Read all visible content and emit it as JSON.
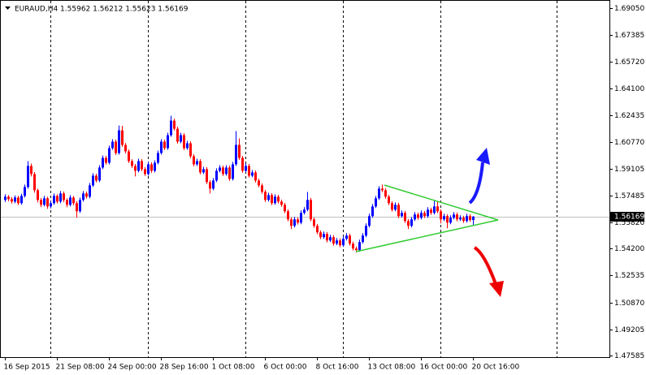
{
  "chart_data": {
    "type": "candlestick",
    "title": "EURAUD,H4  1.55962 1.56212 1.55623 1.56169",
    "up_color": "#0000ff",
    "down_color": "#ff0000",
    "current_price_color": "#c0c0c0",
    "current_price": 1.56169,
    "ylim": [
      1.4749,
      1.6955
    ],
    "yticks": [
      {
        "value": 1.6905,
        "label": "1.69050"
      },
      1.67385,
      {
        "value": 1.6572,
        "label": "1.65720"
      },
      {
        "value": 1.641,
        "label": "1.64100"
      },
      1.62435,
      {
        "value": 1.6077,
        "label": "1.60770"
      },
      1.59105,
      1.57485,
      {
        "value": 1.5582,
        "label": "1.55820"
      },
      {
        "value": 1.542,
        "label": "1.54200"
      },
      1.52535,
      {
        "value": 1.5087,
        "label": "1.50870"
      },
      1.49205,
      1.47585
    ],
    "categories": [
      "16 Sep 2015",
      null,
      null,
      null,
      null,
      null,
      null,
      null,
      null,
      null,
      null,
      null,
      null,
      null,
      null,
      null,
      "21 Sep 08:00",
      null,
      null,
      null,
      null,
      null,
      null,
      null,
      null,
      null,
      null,
      null,
      null,
      null,
      null,
      null,
      "24 Sep 00:00",
      null,
      null,
      null,
      null,
      null,
      null,
      null,
      null,
      null,
      null,
      null,
      null,
      null,
      null,
      null,
      "28 Sep 16:00",
      null,
      null,
      null,
      null,
      null,
      null,
      null,
      null,
      null,
      null,
      null,
      null,
      null,
      null,
      null,
      "1 Oct 08:00",
      null,
      null,
      null,
      null,
      null,
      null,
      null,
      null,
      null,
      null,
      null,
      null,
      null,
      null,
      null,
      "6 Oct 00:00",
      null,
      null,
      null,
      null,
      null,
      null,
      null,
      null,
      null,
      null,
      null,
      null,
      null,
      null,
      null,
      "8 Oct 16:00",
      null,
      null,
      null,
      null,
      null,
      null,
      null,
      null,
      null,
      null,
      null,
      null,
      null,
      null,
      null,
      "13 Oct 08:00",
      null,
      null,
      null,
      null,
      null,
      null,
      null,
      null,
      null,
      null,
      null,
      null,
      null,
      null,
      null,
      "16 Oct 00:00",
      null,
      null,
      null,
      null,
      null,
      null,
      null,
      null,
      null,
      null,
      null,
      null,
      null,
      null,
      null,
      "20 Oct 16:00"
    ],
    "candles": [
      [
        1.572,
        1.5755,
        1.5708,
        1.574
      ],
      [
        1.574,
        1.575,
        1.5712,
        1.5725
      ],
      [
        1.5725,
        1.5738,
        1.5698,
        1.571
      ],
      [
        1.571,
        1.5748,
        1.57,
        1.5735
      ],
      [
        1.5735,
        1.5745,
        1.5688,
        1.57
      ],
      [
        1.57,
        1.5758,
        1.569,
        1.5745
      ],
      [
        1.5745,
        1.5815,
        1.5735,
        1.58
      ],
      [
        1.58,
        1.596,
        1.579,
        1.593
      ],
      [
        1.593,
        1.5945,
        1.5865,
        1.588
      ],
      [
        1.588,
        1.5892,
        1.5765,
        1.578
      ],
      [
        1.578,
        1.579,
        1.5705,
        1.572
      ],
      [
        1.572,
        1.5732,
        1.5676,
        1.569
      ],
      [
        1.569,
        1.5745,
        1.568,
        1.573
      ],
      [
        1.573,
        1.574,
        1.5665,
        1.568
      ],
      [
        1.568,
        1.5715,
        1.5668,
        1.57
      ],
      [
        1.57,
        1.576,
        1.569,
        1.5745
      ],
      [
        1.5745,
        1.5755,
        1.5698,
        1.571
      ],
      [
        1.571,
        1.5775,
        1.57,
        1.576
      ],
      [
        1.576,
        1.5772,
        1.5706,
        1.572
      ],
      [
        1.572,
        1.573,
        1.5675,
        1.569
      ],
      [
        1.569,
        1.575,
        1.568,
        1.5735
      ],
      [
        1.5735,
        1.5745,
        1.5688,
        1.57
      ],
      [
        1.57,
        1.5712,
        1.561,
        1.565
      ],
      [
        1.565,
        1.5735,
        1.564,
        1.572
      ],
      [
        1.572,
        1.5775,
        1.571,
        1.576
      ],
      [
        1.576,
        1.5772,
        1.5728,
        1.574
      ],
      [
        1.574,
        1.5825,
        1.573,
        1.581
      ],
      [
        1.581,
        1.5885,
        1.58,
        1.587
      ],
      [
        1.587,
        1.5882,
        1.5828,
        1.584
      ],
      [
        1.584,
        1.5935,
        1.583,
        1.592
      ],
      [
        1.592,
        1.5995,
        1.591,
        1.598
      ],
      [
        1.598,
        1.5992,
        1.5938,
        1.595
      ],
      [
        1.595,
        1.6055,
        1.594,
        1.604
      ],
      [
        1.604,
        1.6095,
        1.603,
        1.608
      ],
      [
        1.608,
        1.6092,
        1.5998,
        1.601
      ],
      [
        1.601,
        1.618,
        1.6,
        1.615
      ],
      [
        1.615,
        1.6178,
        1.6048,
        1.606
      ],
      [
        1.606,
        1.6072,
        1.6008,
        1.602
      ],
      [
        1.602,
        1.6032,
        1.5948,
        1.596
      ],
      [
        1.596,
        1.5972,
        1.5918,
        1.593
      ],
      [
        1.593,
        1.5942,
        1.5865,
        1.59
      ],
      [
        1.59,
        1.5975,
        1.589,
        1.596
      ],
      [
        1.596,
        1.5972,
        1.5898,
        1.591
      ],
      [
        1.591,
        1.5922,
        1.5868,
        1.588
      ],
      [
        1.588,
        1.5955,
        1.587,
        1.594
      ],
      [
        1.594,
        1.5952,
        1.5888,
        1.59
      ],
      [
        1.59,
        1.5965,
        1.589,
        1.595
      ],
      [
        1.595,
        1.6025,
        1.594,
        1.601
      ],
      [
        1.601,
        1.6095,
        1.6,
        1.608
      ],
      [
        1.608,
        1.6092,
        1.6028,
        1.604
      ],
      [
        1.604,
        1.6135,
        1.603,
        1.612
      ],
      [
        1.612,
        1.624,
        1.611,
        1.621
      ],
      [
        1.621,
        1.6222,
        1.6148,
        1.616
      ],
      [
        1.616,
        1.6172,
        1.6068,
        1.608
      ],
      [
        1.608,
        1.6135,
        1.607,
        1.612
      ],
      [
        1.612,
        1.6132,
        1.6028,
        1.604
      ],
      [
        1.604,
        1.6085,
        1.603,
        1.607
      ],
      [
        1.607,
        1.6082,
        1.5978,
        1.599
      ],
      [
        1.599,
        1.6002,
        1.5928,
        1.594
      ],
      [
        1.594,
        1.5975,
        1.593,
        1.596
      ],
      [
        1.596,
        1.5972,
        1.5878,
        1.589
      ],
      [
        1.589,
        1.5925,
        1.588,
        1.591
      ],
      [
        1.591,
        1.5922,
        1.5818,
        1.583
      ],
      [
        1.583,
        1.5842,
        1.576,
        1.579
      ],
      [
        1.579,
        1.5855,
        1.578,
        1.584
      ],
      [
        1.584,
        1.5915,
        1.583,
        1.59
      ],
      [
        1.59,
        1.5935,
        1.589,
        1.592
      ],
      [
        1.592,
        1.5932,
        1.5868,
        1.588
      ],
      [
        1.588,
        1.5935,
        1.587,
        1.592
      ],
      [
        1.592,
        1.5932,
        1.5838,
        1.585
      ],
      [
        1.585,
        1.5955,
        1.584,
        1.594
      ],
      [
        1.594,
        1.6145,
        1.593,
        1.606
      ],
      [
        1.606,
        1.61,
        1.5968,
        1.598
      ],
      [
        1.598,
        1.5992,
        1.5888,
        1.59
      ],
      [
        1.59,
        1.5945,
        1.589,
        1.593
      ],
      [
        1.593,
        1.5942,
        1.5858,
        1.587
      ],
      [
        1.587,
        1.5905,
        1.586,
        1.589
      ],
      [
        1.589,
        1.5902,
        1.5828,
        1.584
      ],
      [
        1.584,
        1.5852,
        1.5798,
        1.581
      ],
      [
        1.581,
        1.5822,
        1.5758,
        1.577
      ],
      [
        1.577,
        1.5782,
        1.5708,
        1.572
      ],
      [
        1.572,
        1.5765,
        1.571,
        1.575
      ],
      [
        1.575,
        1.5762,
        1.5688,
        1.57
      ],
      [
        1.57,
        1.5755,
        1.569,
        1.574
      ],
      [
        1.574,
        1.5752,
        1.5698,
        1.571
      ],
      [
        1.571,
        1.5722,
        1.5678,
        1.569
      ],
      [
        1.569,
        1.5702,
        1.5638,
        1.565
      ],
      [
        1.565,
        1.5662,
        1.5588,
        1.56
      ],
      [
        1.56,
        1.5612,
        1.554,
        1.556
      ],
      [
        1.556,
        1.5615,
        1.555,
        1.56
      ],
      [
        1.56,
        1.5612,
        1.5568,
        1.558
      ],
      [
        1.558,
        1.5655,
        1.557,
        1.564
      ],
      [
        1.564,
        1.5675,
        1.563,
        1.566
      ],
      [
        1.566,
        1.577,
        1.565,
        1.572
      ],
      [
        1.572,
        1.5732,
        1.5588,
        1.56
      ],
      [
        1.56,
        1.5612,
        1.5548,
        1.556
      ],
      [
        1.556,
        1.5572,
        1.5508,
        1.552
      ],
      [
        1.552,
        1.5532,
        1.5478,
        1.549
      ],
      [
        1.549,
        1.5525,
        1.548,
        1.551
      ],
      [
        1.551,
        1.5522,
        1.5458,
        1.547
      ],
      [
        1.547,
        1.5505,
        1.546,
        1.549
      ],
      [
        1.549,
        1.5502,
        1.5438,
        1.545
      ],
      [
        1.545,
        1.5485,
        1.544,
        1.547
      ],
      [
        1.547,
        1.5482,
        1.5428,
        1.544
      ],
      [
        1.544,
        1.5495,
        1.543,
        1.548
      ],
      [
        1.548,
        1.5515,
        1.547,
        1.55
      ],
      [
        1.55,
        1.5512,
        1.5438,
        1.545
      ],
      [
        1.545,
        1.5462,
        1.5408,
        1.542
      ],
      [
        1.542,
        1.5432,
        1.5395,
        1.541
      ],
      [
        1.541,
        1.5475,
        1.54,
        1.546
      ],
      [
        1.546,
        1.5515,
        1.545,
        1.55
      ],
      [
        1.55,
        1.5575,
        1.549,
        1.556
      ],
      [
        1.556,
        1.5635,
        1.555,
        1.562
      ],
      [
        1.562,
        1.5695,
        1.561,
        1.568
      ],
      [
        1.568,
        1.5745,
        1.567,
        1.573
      ],
      [
        1.573,
        1.5805,
        1.572,
        1.579
      ],
      [
        1.579,
        1.5815,
        1.5768,
        1.578
      ],
      [
        1.578,
        1.5792,
        1.5728,
        1.574
      ],
      [
        1.574,
        1.5752,
        1.5688,
        1.57
      ],
      [
        1.57,
        1.5712,
        1.5648,
        1.566
      ],
      [
        1.566,
        1.5705,
        1.565,
        1.569
      ],
      [
        1.569,
        1.5702,
        1.5608,
        1.562
      ],
      [
        1.562,
        1.5655,
        1.561,
        1.564
      ],
      [
        1.564,
        1.5652,
        1.5578,
        1.559
      ],
      [
        1.559,
        1.5602,
        1.554,
        1.556
      ],
      [
        1.556,
        1.5615,
        1.555,
        1.56
      ],
      [
        1.56,
        1.5645,
        1.559,
        1.563
      ],
      [
        1.563,
        1.5642,
        1.5598,
        1.561
      ],
      [
        1.561,
        1.5655,
        1.56,
        1.564
      ],
      [
        1.564,
        1.5652,
        1.5608,
        1.562
      ],
      [
        1.562,
        1.5675,
        1.561,
        1.566
      ],
      [
        1.566,
        1.5672,
        1.5628,
        1.564
      ],
      [
        1.564,
        1.572,
        1.563,
        1.568
      ],
      [
        1.568,
        1.571,
        1.5638,
        1.565
      ],
      [
        1.565,
        1.5662,
        1.5575,
        1.56
      ],
      [
        1.56,
        1.5635,
        1.559,
        1.562
      ],
      [
        1.562,
        1.5632,
        1.5545,
        1.558
      ],
      [
        1.558,
        1.5625,
        1.557,
        1.561
      ],
      [
        1.561,
        1.5645,
        1.56,
        1.563
      ],
      [
        1.563,
        1.5642,
        1.5588,
        1.56
      ],
      [
        1.56,
        1.5625,
        1.559,
        1.561
      ],
      [
        1.561,
        1.5622,
        1.5578,
        1.559
      ],
      [
        1.559,
        1.5635,
        1.558,
        1.562
      ],
      [
        1.562,
        1.5632,
        1.5585,
        1.5596
      ],
      [
        1.5596,
        1.5621,
        1.5562,
        1.5617
      ]
    ]
  }
}
